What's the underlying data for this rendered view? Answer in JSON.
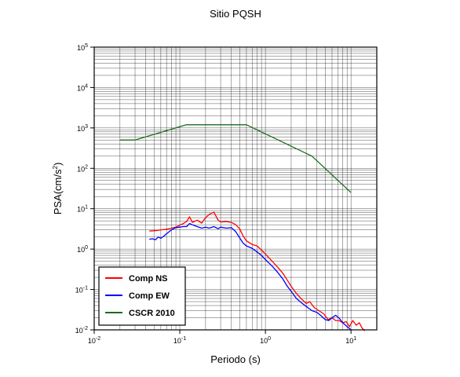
{
  "chart_data": {
    "type": "line",
    "title": "Sitio PQSH",
    "xlabel": "Periodo (s)",
    "ylabel_main": "PSA(cm/s",
    "ylabel_sup": "2",
    "ylabel_tail": ")",
    "xscale": "log",
    "yscale": "log",
    "xlim": [
      0.01,
      20
    ],
    "ylim": [
      0.01,
      100000
    ],
    "grid": true,
    "legend_position": "bottom-left",
    "x_ticks": [
      {
        "value": 0.01,
        "base": "10",
        "exp": "-2"
      },
      {
        "value": 0.1,
        "base": "10",
        "exp": "-1"
      },
      {
        "value": 1,
        "base": "10",
        "exp": "0"
      },
      {
        "value": 10,
        "base": "10",
        "exp": "1"
      }
    ],
    "y_ticks": [
      {
        "value": 0.01,
        "base": "10",
        "exp": "-2"
      },
      {
        "value": 0.1,
        "base": "10",
        "exp": "-1"
      },
      {
        "value": 1,
        "base": "10",
        "exp": "0"
      },
      {
        "value": 10,
        "base": "10",
        "exp": "1"
      },
      {
        "value": 100,
        "base": "10",
        "exp": "2"
      },
      {
        "value": 1000,
        "base": "10",
        "exp": "3"
      },
      {
        "value": 10000,
        "base": "10",
        "exp": "4"
      },
      {
        "value": 100000,
        "base": "10",
        "exp": "5"
      }
    ],
    "series": [
      {
        "name": "Comp NS",
        "color": "#ff0000",
        "points": [
          [
            0.044,
            2.8
          ],
          [
            0.05,
            2.85
          ],
          [
            0.055,
            2.9
          ],
          [
            0.06,
            3.0
          ],
          [
            0.07,
            3.1
          ],
          [
            0.08,
            3.3
          ],
          [
            0.09,
            3.5
          ],
          [
            0.1,
            3.9
          ],
          [
            0.11,
            4.3
          ],
          [
            0.12,
            4.8
          ],
          [
            0.13,
            6.3
          ],
          [
            0.14,
            4.6
          ],
          [
            0.16,
            5.2
          ],
          [
            0.18,
            4.4
          ],
          [
            0.2,
            6.0
          ],
          [
            0.22,
            7.2
          ],
          [
            0.25,
            8.2
          ],
          [
            0.28,
            5.2
          ],
          [
            0.3,
            4.7
          ],
          [
            0.35,
            4.8
          ],
          [
            0.4,
            4.6
          ],
          [
            0.45,
            4.0
          ],
          [
            0.5,
            3.2
          ],
          [
            0.55,
            2.1
          ],
          [
            0.6,
            1.6
          ],
          [
            0.7,
            1.3
          ],
          [
            0.8,
            1.2
          ],
          [
            0.9,
            0.95
          ],
          [
            1.0,
            0.75
          ],
          [
            1.2,
            0.5
          ],
          [
            1.4,
            0.35
          ],
          [
            1.6,
            0.25
          ],
          [
            1.8,
            0.17
          ],
          [
            2.0,
            0.12
          ],
          [
            2.3,
            0.08
          ],
          [
            2.6,
            0.06
          ],
          [
            3.0,
            0.045
          ],
          [
            3.3,
            0.05
          ],
          [
            3.7,
            0.036
          ],
          [
            4.2,
            0.03
          ],
          [
            4.8,
            0.025
          ],
          [
            5.4,
            0.018
          ],
          [
            6.0,
            0.02
          ],
          [
            6.6,
            0.017
          ],
          [
            7.2,
            0.017
          ],
          [
            8.0,
            0.015
          ],
          [
            8.8,
            0.016
          ],
          [
            9.6,
            0.012
          ],
          [
            10.5,
            0.017
          ],
          [
            11.5,
            0.013
          ],
          [
            12.5,
            0.015
          ],
          [
            13.5,
            0.011
          ],
          [
            14.5,
            0.0095
          ]
        ]
      },
      {
        "name": "Comp EW",
        "color": "#0000ff",
        "points": [
          [
            0.044,
            1.75
          ],
          [
            0.048,
            1.8
          ],
          [
            0.052,
            1.7
          ],
          [
            0.056,
            2.0
          ],
          [
            0.06,
            1.85
          ],
          [
            0.065,
            2.1
          ],
          [
            0.07,
            2.4
          ],
          [
            0.08,
            3.0
          ],
          [
            0.09,
            3.4
          ],
          [
            0.1,
            3.5
          ],
          [
            0.11,
            3.6
          ],
          [
            0.12,
            3.6
          ],
          [
            0.13,
            4.3
          ],
          [
            0.14,
            4.0
          ],
          [
            0.16,
            3.6
          ],
          [
            0.18,
            3.3
          ],
          [
            0.2,
            3.5
          ],
          [
            0.22,
            3.3
          ],
          [
            0.25,
            3.6
          ],
          [
            0.28,
            3.2
          ],
          [
            0.3,
            3.5
          ],
          [
            0.35,
            3.3
          ],
          [
            0.4,
            3.4
          ],
          [
            0.45,
            2.7
          ],
          [
            0.5,
            1.9
          ],
          [
            0.55,
            1.4
          ],
          [
            0.6,
            1.2
          ],
          [
            0.7,
            1.05
          ],
          [
            0.8,
            0.85
          ],
          [
            0.9,
            0.7
          ],
          [
            1.0,
            0.55
          ],
          [
            1.2,
            0.38
          ],
          [
            1.4,
            0.26
          ],
          [
            1.6,
            0.18
          ],
          [
            1.8,
            0.12
          ],
          [
            2.0,
            0.09
          ],
          [
            2.3,
            0.06
          ],
          [
            2.6,
            0.048
          ],
          [
            3.0,
            0.038
          ],
          [
            3.5,
            0.03
          ],
          [
            4.0,
            0.027
          ],
          [
            4.5,
            0.022
          ],
          [
            5.0,
            0.018
          ],
          [
            5.5,
            0.017
          ],
          [
            6.0,
            0.02
          ],
          [
            6.6,
            0.023
          ],
          [
            7.2,
            0.02
          ],
          [
            8.0,
            0.015
          ],
          [
            9.0,
            0.012
          ],
          [
            10.0,
            0.01
          ]
        ]
      },
      {
        "name": "CSCR 2010",
        "color": "#1a6b1a",
        "points": [
          [
            0.02,
            500
          ],
          [
            0.03,
            500
          ],
          [
            0.12,
            1200
          ],
          [
            0.6,
            1200
          ],
          [
            3.5,
            200
          ],
          [
            10.0,
            25
          ]
        ]
      }
    ]
  }
}
